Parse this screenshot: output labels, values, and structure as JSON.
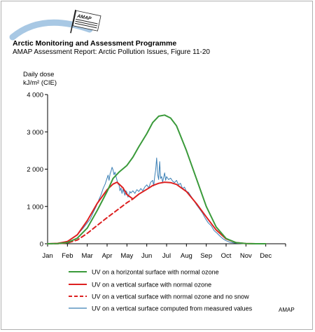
{
  "header": {
    "title": "Arctic Monitoring and Assessment Programme",
    "subtitle": "AMAP Assessment Report: Arctic Pollution Issues, Figure 11-20",
    "logo_text": "AMAP",
    "logo_arc_color": "#a8c8e4"
  },
  "footer": {
    "mark": "AMAP"
  },
  "chart_data": {
    "type": "line",
    "ylabel_line1": "Daily dose",
    "ylabel_line2": "kJ/m² (CIE)",
    "xlabel": "",
    "ylim": [
      0,
      4000
    ],
    "yticks": [
      0,
      1000,
      2000,
      3000,
      4000
    ],
    "ytick_labels": [
      "0",
      "1 000",
      "2 000",
      "3 000",
      "4 000"
    ],
    "xlim": [
      0,
      12
    ],
    "xticks": [
      0,
      1,
      2,
      3,
      4,
      5,
      6,
      7,
      8,
      9,
      10,
      11
    ],
    "xtick_labels": [
      "Jan",
      "Feb",
      "Mar",
      "Apr",
      "May",
      "Jun",
      "Jul",
      "Aug",
      "Sep",
      "Oct",
      "Nov",
      "Dec"
    ],
    "legend_position": "bottom",
    "series": [
      {
        "name": "UV on a horizontal surface with normal ozone",
        "color": "#3a9a3a",
        "style": "solid",
        "x": [
          0,
          0.5,
          1.0,
          1.5,
          2.0,
          2.5,
          3.0,
          3.3,
          3.6,
          4.0,
          4.3,
          4.6,
          5.0,
          5.3,
          5.6,
          5.9,
          6.2,
          6.5,
          7.0,
          7.5,
          8.0,
          8.5,
          9.0,
          9.5,
          10.0,
          10.5,
          11.0
        ],
        "values": [
          0,
          5,
          30,
          150,
          420,
          890,
          1400,
          1750,
          1920,
          2100,
          2320,
          2600,
          2950,
          3250,
          3420,
          3450,
          3370,
          3160,
          2500,
          1750,
          1000,
          450,
          140,
          30,
          5,
          0,
          0
        ]
      },
      {
        "name": "UV on a vertical surface with normal ozone",
        "color": "#dd2020",
        "style": "solid",
        "x": [
          0,
          0.5,
          1.0,
          1.5,
          2.0,
          2.5,
          3.0,
          3.3,
          3.5,
          3.8,
          4.0,
          4.3,
          4.6,
          5.0,
          5.3,
          5.6,
          5.9,
          6.2,
          6.5,
          7.0,
          7.5,
          8.0,
          8.5,
          9.0,
          9.5,
          10.0,
          10.5,
          11.0
        ],
        "values": [
          0,
          10,
          60,
          240,
          620,
          1080,
          1450,
          1600,
          1650,
          1500,
          1320,
          1200,
          1330,
          1460,
          1560,
          1620,
          1650,
          1640,
          1590,
          1400,
          1080,
          720,
          370,
          130,
          30,
          5,
          0,
          0
        ]
      },
      {
        "name": "UV on a vertical surface with normal ozone and no snow",
        "color": "#dd2020",
        "style": "dashed",
        "x": [
          0,
          0.5,
          1.0,
          1.5,
          2.0,
          2.5,
          3.0,
          3.5,
          4.0,
          4.3
        ],
        "values": [
          0,
          2,
          20,
          100,
          280,
          490,
          700,
          900,
          1100,
          1200
        ]
      },
      {
        "name": "UV on a vertical surface computed from measured values",
        "color": "#3a7fb5",
        "style": "solid",
        "x": [
          0,
          0.5,
          1.0,
          1.3,
          1.6,
          1.8,
          2.0,
          2.15,
          2.3,
          2.45,
          2.6,
          2.7,
          2.8,
          2.9,
          3.0,
          3.05,
          3.1,
          3.15,
          3.2,
          3.25,
          3.3,
          3.35,
          3.4,
          3.45,
          3.5,
          3.55,
          3.6,
          3.65,
          3.7,
          3.75,
          3.8,
          3.85,
          3.9,
          3.95,
          4.0,
          4.05,
          4.1,
          4.15,
          4.2,
          4.3,
          4.4,
          4.5,
          4.6,
          4.7,
          4.8,
          4.9,
          5.0,
          5.1,
          5.2,
          5.3,
          5.35,
          5.4,
          5.45,
          5.5,
          5.55,
          5.6,
          5.65,
          5.7,
          5.75,
          5.8,
          5.85,
          5.9,
          5.95,
          6.0,
          6.1,
          6.2,
          6.3,
          6.4,
          6.5,
          6.6,
          6.7,
          6.8,
          6.9,
          7.0,
          7.1,
          7.2,
          7.35,
          7.5,
          7.65,
          7.8,
          7.95,
          8.1,
          8.25,
          8.4,
          8.55,
          8.7,
          8.85,
          9.0,
          9.2,
          9.4,
          9.6,
          9.8,
          10.0,
          10.5,
          11.0
        ],
        "values": [
          0,
          10,
          70,
          160,
          300,
          420,
          560,
          660,
          840,
          1000,
          1200,
          1320,
          1480,
          1600,
          1760,
          1840,
          1700,
          1880,
          1950,
          2050,
          1980,
          1850,
          1920,
          1800,
          1700,
          1600,
          1580,
          1420,
          1500,
          1350,
          1460,
          1380,
          1300,
          1420,
          1380,
          1250,
          1320,
          1400,
          1360,
          1420,
          1350,
          1450,
          1400,
          1480,
          1420,
          1520,
          1580,
          1500,
          1650,
          1700,
          1550,
          1800,
          1980,
          2300,
          1850,
          1720,
          2200,
          1750,
          1800,
          1650,
          1780,
          1900,
          1700,
          1800,
          1720,
          1760,
          1680,
          1640,
          1700,
          1580,
          1620,
          1480,
          1520,
          1400,
          1380,
          1300,
          1180,
          1050,
          940,
          830,
          680,
          560,
          480,
          350,
          280,
          200,
          130,
          80,
          40,
          20,
          10,
          5,
          2,
          0,
          0
        ]
      }
    ]
  }
}
